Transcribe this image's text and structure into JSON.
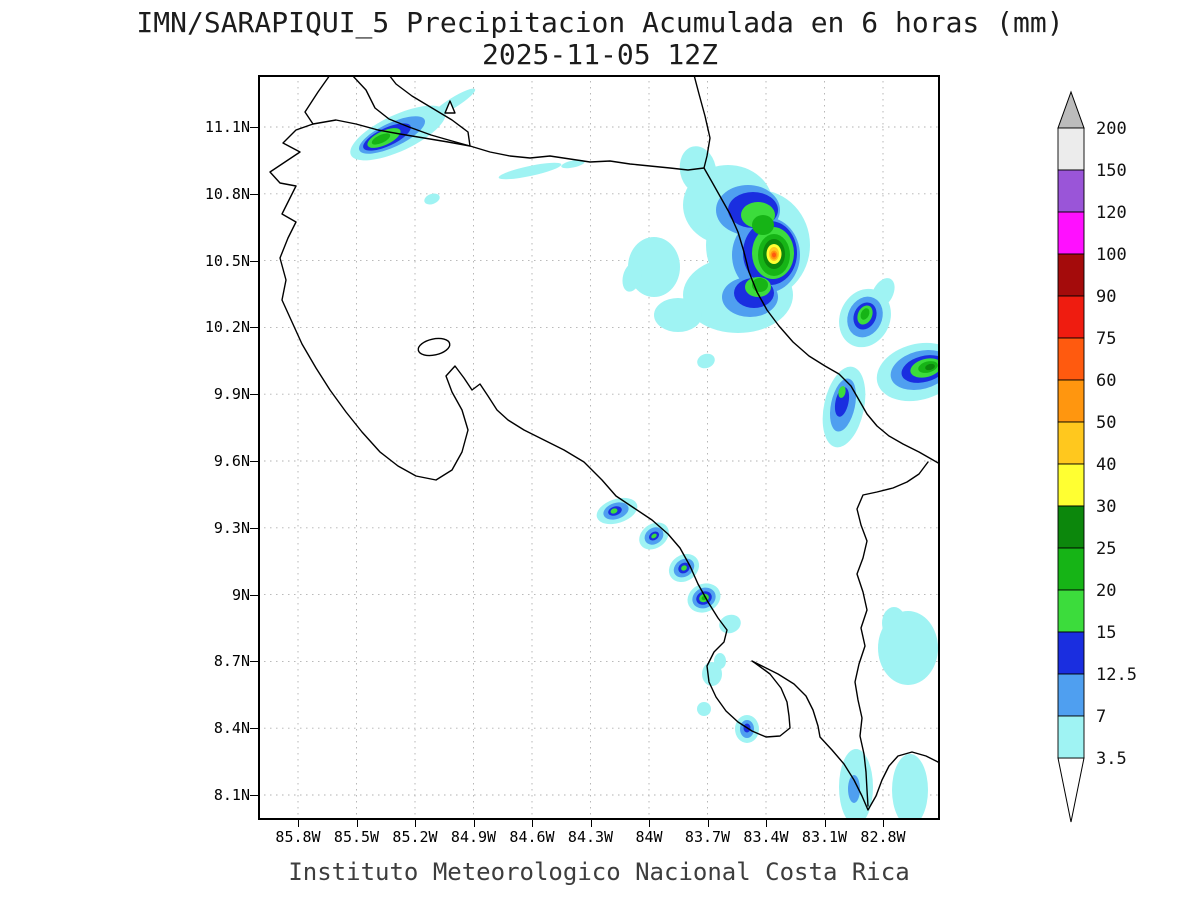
{
  "header": {
    "title_line1": "IMN/SARAPIQUI_5 Precipitacion Acumulada en 6 horas (mm)",
    "title_line2": "2025-11-05 12Z"
  },
  "footer": {
    "credit": "Instituto Meteorologico Nacional Costa Rica"
  },
  "axes": {
    "lat_ticks": [
      {
        "deg": 11.1,
        "label": "11.1N"
      },
      {
        "deg": 10.8,
        "label": "10.8N"
      },
      {
        "deg": 10.5,
        "label": "10.5N"
      },
      {
        "deg": 10.2,
        "label": "10.2N"
      },
      {
        "deg": 9.9,
        "label": "9.9N"
      },
      {
        "deg": 9.6,
        "label": "9.6N"
      },
      {
        "deg": 9.3,
        "label": "9.3N"
      },
      {
        "deg": 9.0,
        "label": "9N"
      },
      {
        "deg": 8.7,
        "label": "8.7N"
      },
      {
        "deg": 8.4,
        "label": "8.4N"
      },
      {
        "deg": 8.1,
        "label": "8.1N"
      }
    ],
    "lon_ticks": [
      {
        "deg": 85.8,
        "label": "85.8W"
      },
      {
        "deg": 85.5,
        "label": "85.5W"
      },
      {
        "deg": 85.2,
        "label": "85.2W"
      },
      {
        "deg": 84.9,
        "label": "84.9W"
      },
      {
        "deg": 84.6,
        "label": "84.6W"
      },
      {
        "deg": 84.3,
        "label": "84.3W"
      },
      {
        "deg": 84.0,
        "label": "84W"
      },
      {
        "deg": 83.7,
        "label": "83.7W"
      },
      {
        "deg": 83.4,
        "label": "83.4W"
      },
      {
        "deg": 83.1,
        "label": "83.1W"
      },
      {
        "deg": 82.8,
        "label": "82.8W"
      }
    ]
  },
  "colorbar": {
    "boundaries": [
      "3.5",
      "7",
      "12.5",
      "15",
      "20",
      "25",
      "30",
      "40",
      "50",
      "60",
      "75",
      "90",
      "100",
      "120",
      "150",
      "200"
    ],
    "segment_colors": [
      "#9ff3f3",
      "#4f9ff0",
      "#1a2ee0",
      "#3cdc3c",
      "#16b416",
      "#0c870c",
      "#ffff32",
      "#ffc81e",
      "#ff960f",
      "#ff5a0f",
      "#ef1c10",
      "#a40b0b",
      "#ff10ff",
      "#9a55d8",
      "#ececec"
    ],
    "over_color": "#bcbcbc",
    "under_color": "#ffffff"
  },
  "chart_data": {
    "type": "heatmap",
    "title": "IMN/SARAPIQUI_5 Precipitacion Acumulada en 6 horas (mm)",
    "valid_time": "2025-11-05 12Z",
    "variable": "Precipitacion Acumulada en 6 horas",
    "units": "mm",
    "region": "Costa Rica",
    "lon_range_deg_w": [
      86.0,
      82.5
    ],
    "lat_range_deg_n": [
      8.0,
      11.33
    ],
    "grid_spacing_deg": 0.3,
    "levels_mm": [
      3.5,
      7,
      12.5,
      15,
      20,
      25,
      30,
      40,
      50,
      60,
      75,
      90,
      100,
      120,
      150,
      200
    ],
    "legend_position": "right",
    "grid": "dotted",
    "features": [
      {
        "name": "cell-nw-guanacaste-nicaragua-border",
        "lon_w": 85.55,
        "lat_n": 11.05,
        "peak_band_mm": 20
      },
      {
        "name": "streak-northern-plains",
        "lon_w": 84.65,
        "lat_n": 10.85,
        "peak_band_mm": 3.5
      },
      {
        "name": "spot-north-small",
        "lon_w": 84.95,
        "lat_n": 10.77,
        "peak_band_mm": 3.5
      },
      {
        "name": "main-storm-sarapiqui-caribbean",
        "lon_w": 83.45,
        "lat_n": 10.52,
        "peak_band_mm": 60
      },
      {
        "name": "cell-caribbean-east",
        "lon_w": 82.95,
        "lat_n": 10.25,
        "peak_band_mm": 20
      },
      {
        "name": "cell-far-east-edge",
        "lon_w": 82.6,
        "lat_n": 10.05,
        "peak_band_mm": 25
      },
      {
        "name": "cell-talamanca-north",
        "lon_w": 83.15,
        "lat_n": 9.95,
        "peak_band_mm": 15
      },
      {
        "name": "spot-central-small",
        "lon_w": 83.75,
        "lat_n": 10.12,
        "peak_band_mm": 3.5
      },
      {
        "name": "coastal-cell-quepos",
        "lon_w": 84.05,
        "lat_n": 9.37,
        "peak_band_mm": 15
      },
      {
        "name": "coastal-cell-2",
        "lon_w": 83.9,
        "lat_n": 9.25,
        "peak_band_mm": 15
      },
      {
        "name": "coastal-cell-3",
        "lon_w": 83.78,
        "lat_n": 9.12,
        "peak_band_mm": 15
      },
      {
        "name": "coastal-cell-uvita",
        "lon_w": 83.68,
        "lat_n": 9.0,
        "peak_band_mm": 20
      },
      {
        "name": "spot-coast-small",
        "lon_w": 83.55,
        "lat_n": 8.87,
        "peak_band_mm": 3.5
      },
      {
        "name": "spot-golfo-dulce-north",
        "lon_w": 83.6,
        "lat_n": 8.65,
        "peak_band_mm": 3.5
      },
      {
        "name": "spot-golfo-dulce-south",
        "lon_w": 83.62,
        "lat_n": 8.48,
        "peak_band_mm": 3.5
      },
      {
        "name": "spot-punta-banco",
        "lon_w": 83.42,
        "lat_n": 8.4,
        "peak_band_mm": 12.5
      },
      {
        "name": "patch-chiriqui-east",
        "lon_w": 82.65,
        "lat_n": 8.75,
        "peak_band_mm": 3.5
      },
      {
        "name": "patch-burica-west",
        "lon_w": 82.85,
        "lat_n": 8.15,
        "peak_band_mm": 7
      },
      {
        "name": "patch-burica-east",
        "lon_w": 82.6,
        "lat_n": 8.1,
        "peak_band_mm": 3.5
      }
    ]
  }
}
